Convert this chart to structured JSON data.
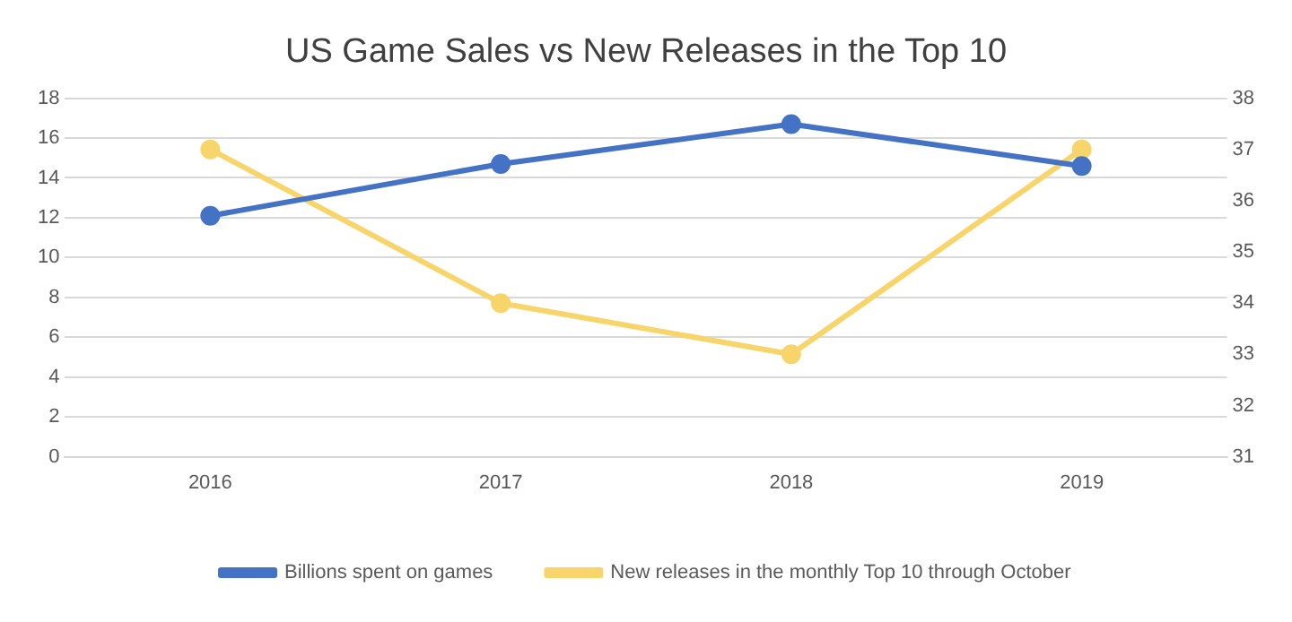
{
  "chart_data": {
    "type": "line",
    "title": "US Game Sales vs New Releases in the Top 10",
    "categories": [
      "2016",
      "2017",
      "2018",
      "2019"
    ],
    "series": [
      {
        "name": "Billions spent on games",
        "color": "#4472c4",
        "values": [
          12.1,
          14.7,
          16.7,
          14.6
        ]
      },
      {
        "name": "New releases in the monthly Top 10 through October",
        "color": "#f7d56b",
        "values": [
          37,
          34,
          33,
          37
        ],
        "axis": "y2"
      }
    ],
    "ylim": [
      0,
      18
    ],
    "yticks": [
      0,
      2,
      4,
      6,
      8,
      10,
      12,
      14,
      16,
      18
    ],
    "y2lim": [
      31,
      38
    ],
    "y2ticks": [
      31,
      32,
      33,
      34,
      35,
      36,
      37,
      38
    ],
    "grid": "y",
    "legend": "bottom",
    "marker": "circle",
    "line_style": "solid"
  }
}
